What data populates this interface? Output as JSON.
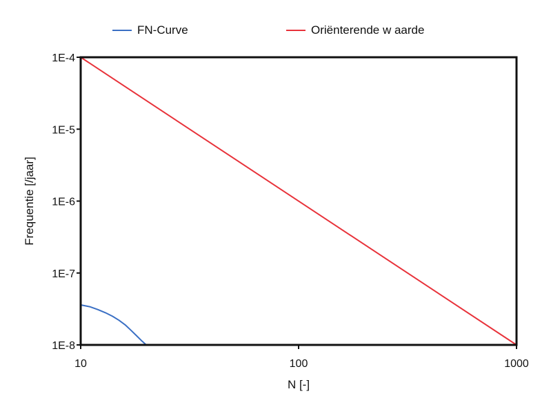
{
  "chart_data": {
    "type": "line",
    "title": "",
    "xlabel": "N [-]",
    "ylabel": "Frequentie [/jaar]",
    "x_scale": "log",
    "y_scale": "log",
    "xlim": [
      10,
      1000
    ],
    "ylim": [
      1e-08,
      0.0001
    ],
    "x_ticks": [
      10,
      100,
      1000
    ],
    "x_tick_labels": [
      "10",
      "100",
      "1000"
    ],
    "y_ticks": [
      1e-08,
      1e-07,
      1e-06,
      1e-05,
      0.0001
    ],
    "y_tick_labels": [
      "1E-8",
      "1E-7",
      "1E-6",
      "1E-5",
      "1E-4"
    ],
    "grid": false,
    "legend_position": "top",
    "series": [
      {
        "name": "FN-Curve",
        "color": "#3a6fc4",
        "x": [
          10,
          11,
          12,
          13,
          14,
          15,
          16,
          17,
          18,
          19,
          20
        ],
        "y": [
          3.6e-08,
          3.4e-08,
          3.1e-08,
          2.8e-08,
          2.5e-08,
          2.2e-08,
          1.9e-08,
          1.6e-08,
          1.35e-08,
          1.15e-08,
          1e-08
        ]
      },
      {
        "name": "Oriënterende w aarde",
        "color": "#e8323a",
        "x": [
          10,
          1000
        ],
        "y": [
          0.0001,
          1e-08
        ]
      }
    ]
  }
}
